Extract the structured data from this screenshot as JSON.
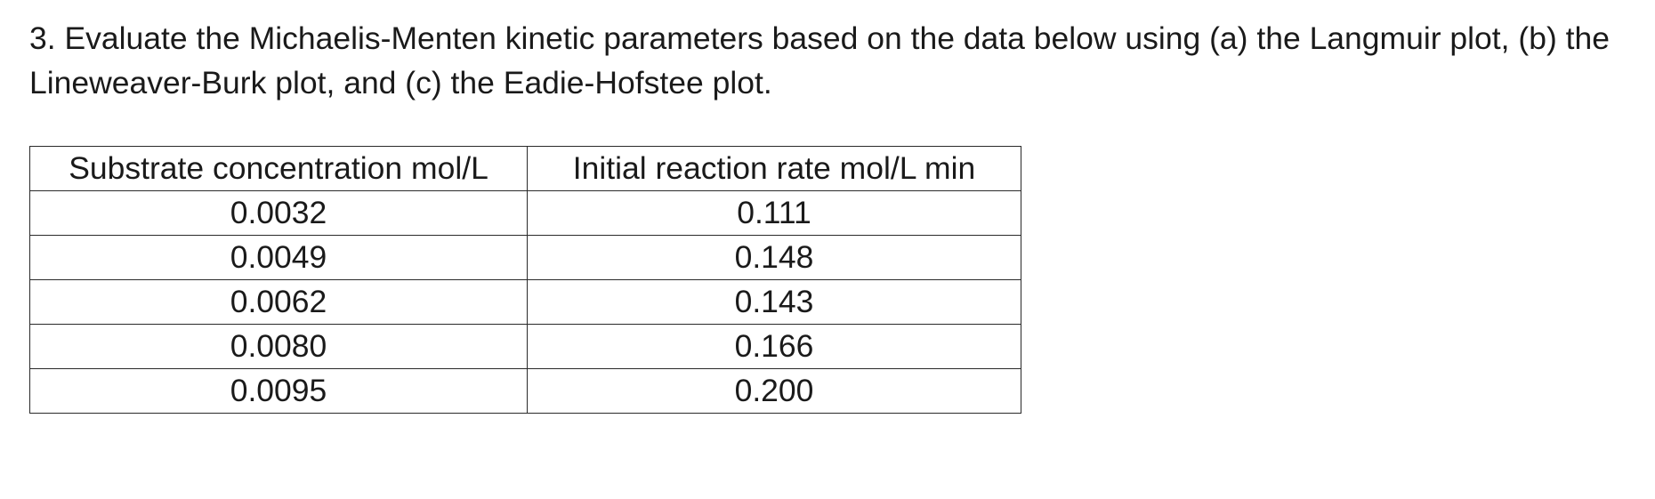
{
  "problem": {
    "text": "3. Evaluate the Michaelis-Menten kinetic parameters based on the data below using (a) the Langmuir plot, (b) the Lineweaver-Burk plot, and (c) the Eadie-Hofstee plot."
  },
  "table": {
    "headers": [
      "Substrate concentration mol/L",
      "Initial reaction rate mol/L min"
    ],
    "rows": [
      [
        "0.0032",
        "0.111"
      ],
      [
        "0.0049",
        "0.148"
      ],
      [
        "0.0062",
        "0.143"
      ],
      [
        "0.0080",
        "0.166"
      ],
      [
        "0.0095",
        "0.200"
      ]
    ]
  }
}
